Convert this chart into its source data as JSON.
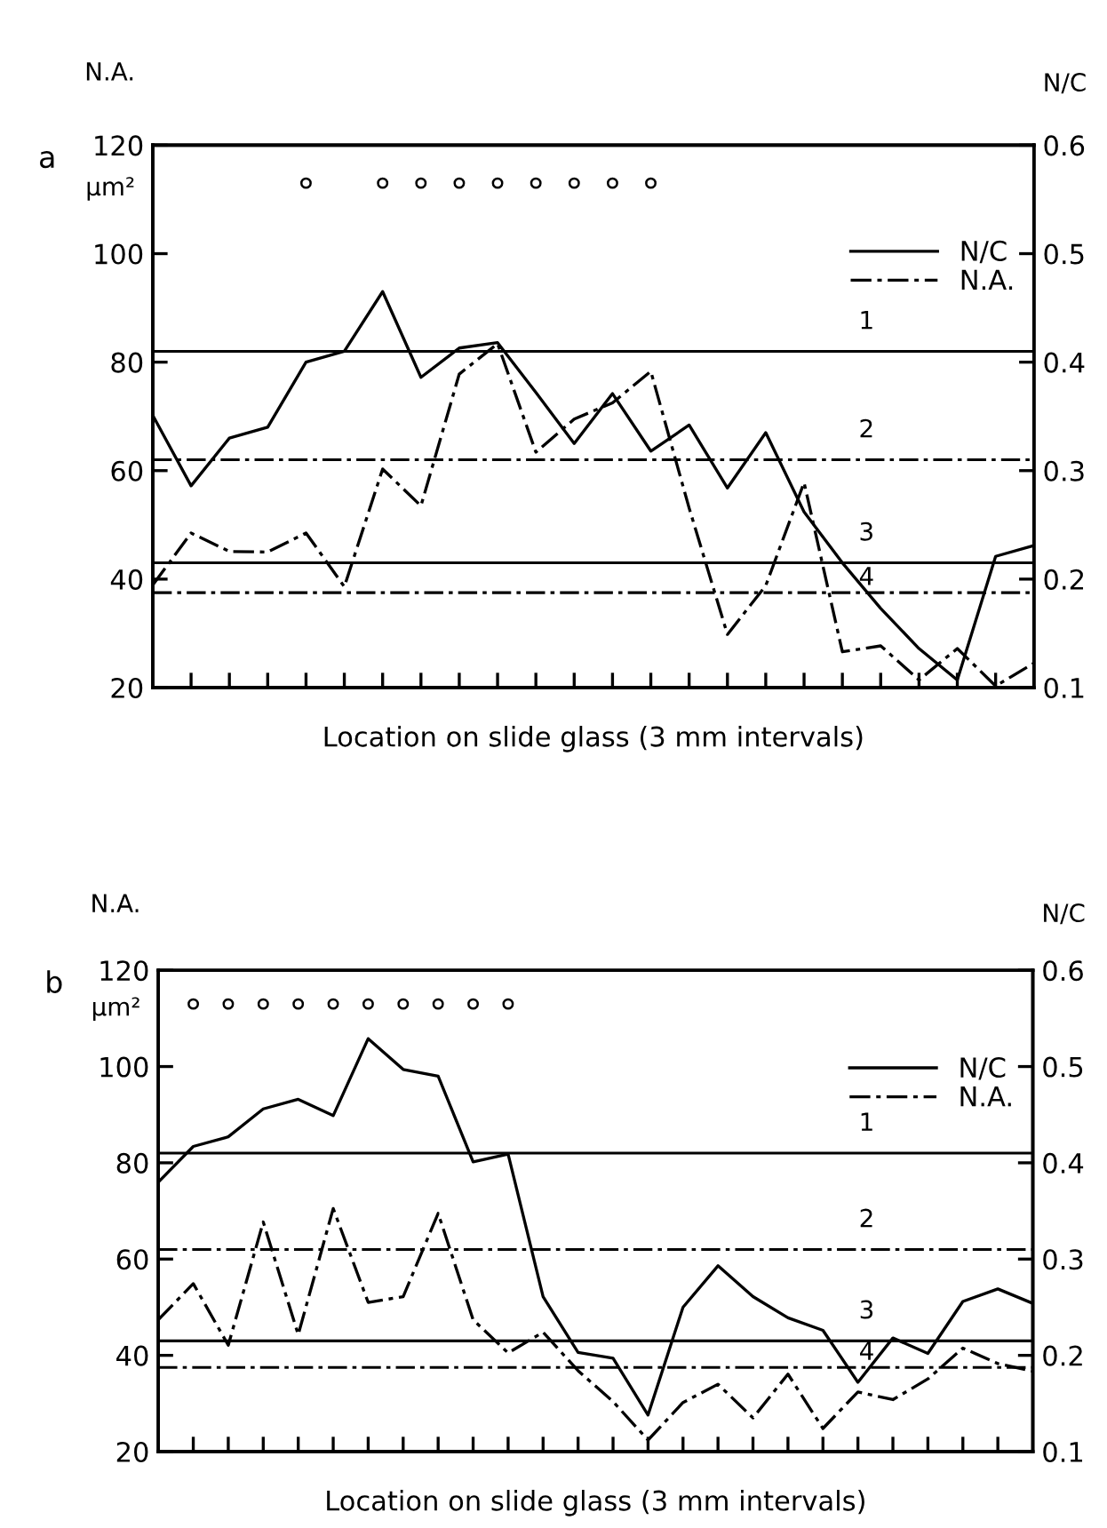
{
  "chart_data": [
    {
      "type": "line",
      "title": "a",
      "annotations": [
        "µm²",
        "1",
        "2",
        "3",
        "4"
      ],
      "xlabel": "Location on slide glass (3 mm intervals)",
      "ylabel": "N.A.",
      "y2label": "N/C",
      "categories": [
        null,
        null,
        null,
        null,
        null,
        null,
        null,
        null,
        null,
        null,
        null,
        null,
        null,
        null,
        null,
        null,
        null,
        null,
        null,
        null,
        null,
        null,
        null,
        null
      ],
      "ylim": [
        20,
        120
      ],
      "yticks": [
        20,
        40,
        60,
        80,
        100,
        120
      ],
      "y2lim": [
        0.1,
        0.6
      ],
      "y2ticks": [
        0.1,
        0.2,
        0.3,
        0.4,
        0.5,
        0.6
      ],
      "tick_labels": "y",
      "grid": false,
      "legend": "top right",
      "series": [
        {
          "name": "N/C",
          "type": "line",
          "axis": "y2",
          "color": "#000000",
          "line_style": "solid",
          "values": [
            0.351,
            0.286,
            0.33,
            0.34,
            0.4,
            0.41,
            0.465,
            0.386,
            0.413,
            0.418,
            0.372,
            0.325,
            0.371,
            0.318,
            0.342,
            0.284,
            0.335,
            0.262,
            0.215,
            0.173,
            0.136,
            0.107,
            0.221,
            0.231
          ]
        },
        {
          "name": "N.A.",
          "type": "line",
          "axis": "y",
          "color": "#000000",
          "line_style": "dashed",
          "values": [
            38.9,
            48.5,
            45.1,
            45,
            48.5,
            38.6,
            60.3,
            53.5,
            77.8,
            83.4,
            63.4,
            69.5,
            72.5,
            78.3,
            53.1,
            29.8,
            38.8,
            57.8,
            26.6,
            27.7,
            21.4,
            27.2,
            20.3,
            24.5
          ]
        },
        {
          "type": "scatter",
          "axis": "y",
          "color": "#000000",
          "marker": "circle",
          "values": [
            null,
            null,
            null,
            null,
            113,
            null,
            113,
            113,
            113,
            113,
            113,
            113,
            113,
            113,
            null,
            null,
            null,
            null,
            null,
            null,
            null,
            null,
            null,
            null
          ]
        }
      ],
      "ref_lines": [
        {
          "axis": "y2",
          "value": 0.41,
          "line_style": "solid",
          "color": "#000000"
        },
        {
          "axis": "y",
          "value": 62,
          "line_style": "dashed",
          "color": "#000000"
        },
        {
          "axis": "y2",
          "value": 0.215,
          "line_style": "solid",
          "color": "#000000"
        },
        {
          "axis": "y",
          "value": 37.5,
          "line_style": "dashed",
          "color": "#000000"
        }
      ]
    },
    {
      "type": "line",
      "title": "b",
      "annotations": [
        "µm²",
        "1",
        "2",
        "3",
        "4"
      ],
      "xlabel": "Location on slide glass (3 mm intervals)",
      "ylabel": "N.A.",
      "y2label": "N/C",
      "categories": [
        null,
        null,
        null,
        null,
        null,
        null,
        null,
        null,
        null,
        null,
        null,
        null,
        null,
        null,
        null,
        null,
        null,
        null,
        null,
        null,
        null,
        null,
        null,
        null,
        null,
        null
      ],
      "ylim": [
        20,
        120
      ],
      "yticks": [
        20,
        40,
        60,
        80,
        100,
        120
      ],
      "y2lim": [
        0.1,
        0.6
      ],
      "y2ticks": [
        0.1,
        0.2,
        0.3,
        0.4,
        0.5,
        0.6
      ],
      "tick_labels": "y",
      "grid": false,
      "legend": "top right",
      "series": [
        {
          "name": "N/C",
          "type": "line",
          "axis": "y2",
          "color": "#000000",
          "line_style": "solid",
          "values": [
            0.38,
            0.417,
            0.427,
            0.456,
            0.466,
            0.449,
            0.529,
            0.497,
            0.49,
            0.401,
            0.409,
            0.261,
            0.203,
            0.197,
            0.138,
            0.25,
            0.293,
            0.261,
            0.239,
            0.226,
            0.172,
            0.218,
            0.202,
            0.256,
            0.269,
            0.254
          ]
        },
        {
          "name": "N.A.",
          "type": "line",
          "axis": "y",
          "color": "#000000",
          "line_style": "dashed",
          "values": [
            47.4,
            54.9,
            42.1,
            67.7,
            44.3,
            70.5,
            51,
            52.2,
            69.5,
            47.4,
            40.5,
            44.8,
            36.8,
            30.4,
            22.4,
            30.2,
            34,
            27,
            36.1,
            24.8,
            32.4,
            30.8,
            35.1,
            41.5,
            38.3,
            36.7
          ]
        },
        {
          "type": "scatter",
          "axis": "y",
          "color": "#000000",
          "marker": "circle",
          "values": [
            null,
            113,
            113,
            113,
            113,
            113,
            113,
            113,
            113,
            113,
            113,
            null,
            null,
            null,
            null,
            null,
            null,
            null,
            null,
            null,
            null,
            null,
            null,
            null,
            null,
            null
          ]
        }
      ],
      "ref_lines": [
        {
          "axis": "y2",
          "value": 0.41,
          "line_style": "solid",
          "color": "#000000"
        },
        {
          "axis": "y",
          "value": 62,
          "line_style": "dashed",
          "color": "#000000"
        },
        {
          "axis": "y2",
          "value": 0.215,
          "line_style": "solid",
          "color": "#000000"
        },
        {
          "axis": "y",
          "value": 37.5,
          "line_style": "dashed",
          "color": "#000000"
        }
      ]
    }
  ]
}
